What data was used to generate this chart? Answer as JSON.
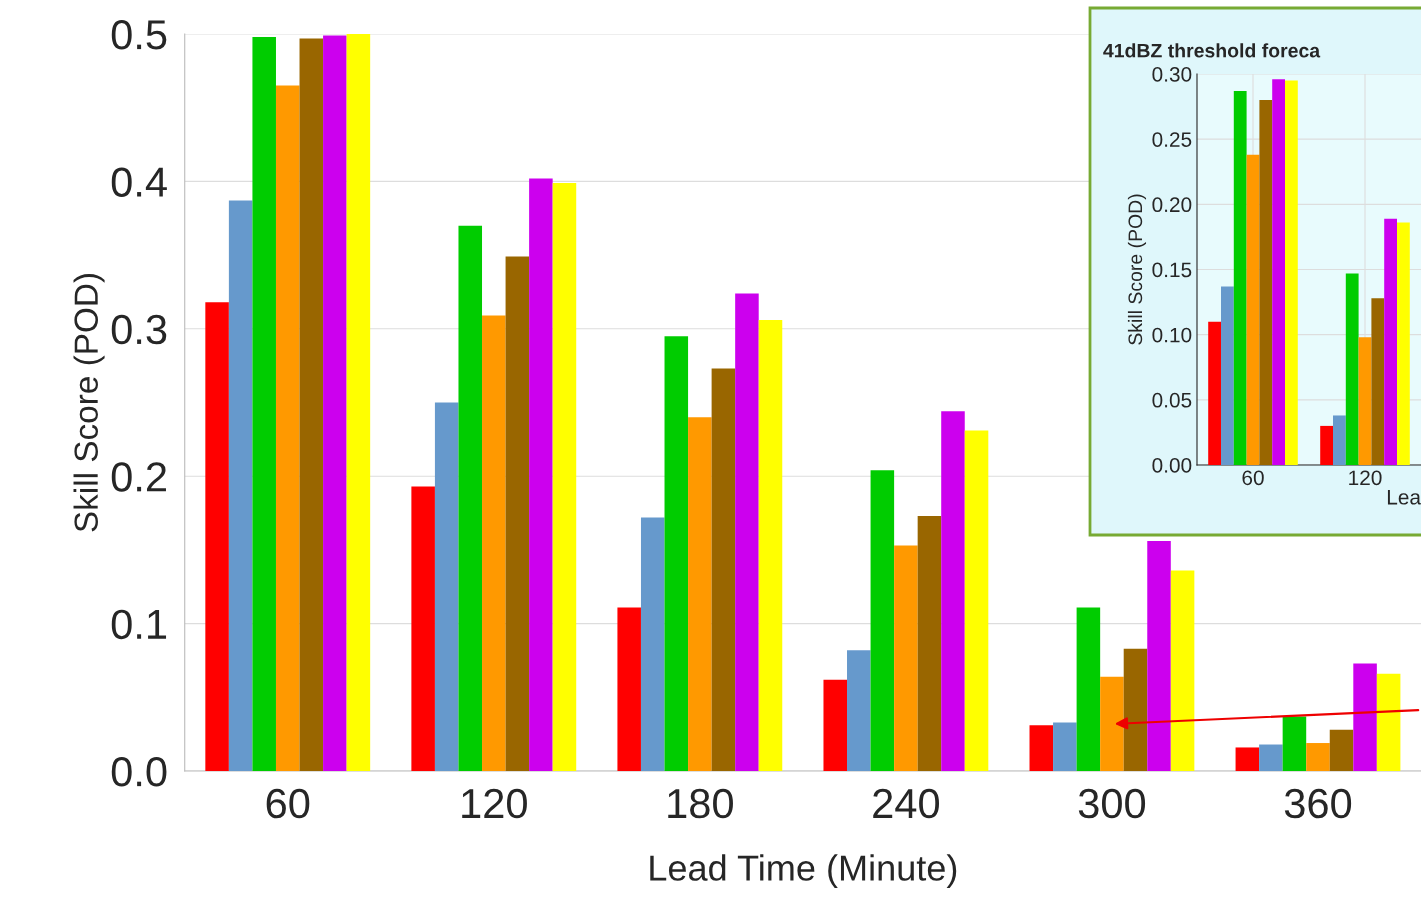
{
  "chart_data": [
    {
      "type": "bar",
      "xlabel": "Lead Time (Minute)",
      "ylabel": "Skill Score (POD)",
      "categories": [
        "60",
        "120",
        "180",
        "240",
        "300",
        "360"
      ],
      "ylim": [
        0,
        0.5
      ],
      "yticks": [
        {
          "value": 0,
          "label": "0.0"
        },
        {
          "value": 0.1,
          "label": "0.1"
        },
        {
          "value": 0.2,
          "label": "0.2"
        },
        {
          "value": 0.3,
          "label": "0.3"
        },
        {
          "value": 0.4,
          "label": "0.4"
        },
        {
          "value": 0.5,
          "label": "0.5"
        }
      ],
      "grid": "y",
      "series": [
        {
          "color": "#ff0000",
          "values": [
            0.318,
            0.193,
            0.111,
            0.062,
            0.031,
            0.016
          ]
        },
        {
          "color": "#6699cc",
          "values": [
            0.387,
            0.25,
            0.172,
            0.082,
            0.033,
            0.018
          ]
        },
        {
          "color": "#00cc00",
          "values": [
            0.498,
            0.37,
            0.295,
            0.204,
            0.111,
            0.037
          ]
        },
        {
          "color": "#ff9900",
          "values": [
            0.465,
            0.309,
            0.24,
            0.153,
            0.064,
            0.019
          ]
        },
        {
          "color": "#996600",
          "values": [
            0.497,
            0.349,
            0.273,
            0.173,
            0.083,
            0.028
          ]
        },
        {
          "color": "#cc00ee",
          "values": [
            0.499,
            0.402,
            0.324,
            0.244,
            0.156,
            0.073
          ]
        },
        {
          "color": "#ffff00",
          "values": [
            0.5,
            0.399,
            0.306,
            0.231,
            0.136,
            0.066
          ]
        }
      ]
    },
    {
      "type": "bar",
      "title": "41dBZ threshold foreca",
      "xlabel": "Lea",
      "ylabel": "Skill Score (POD)",
      "categories": [
        "60",
        "120"
      ],
      "ylim": [
        0,
        0.3
      ],
      "yticks": [
        {
          "value": 0,
          "label": "0.00"
        },
        {
          "value": 0.05,
          "label": "0.05"
        },
        {
          "value": 0.1,
          "label": "0.10"
        },
        {
          "value": 0.15,
          "label": "0.15"
        },
        {
          "value": 0.2,
          "label": "0.20"
        },
        {
          "value": 0.25,
          "label": "0.25"
        },
        {
          "value": 0.3,
          "label": "0.30"
        }
      ],
      "grid": true,
      "series": [
        {
          "color": "#ff0000",
          "values": [
            0.11,
            0.03
          ]
        },
        {
          "color": "#6699cc",
          "values": [
            0.137,
            0.038
          ]
        },
        {
          "color": "#00cc00",
          "values": [
            0.287,
            0.147
          ]
        },
        {
          "color": "#ff9900",
          "values": [
            0.238,
            0.098
          ]
        },
        {
          "color": "#996600",
          "values": [
            0.28,
            0.128
          ]
        },
        {
          "color": "#cc00ee",
          "values": [
            0.296,
            0.189
          ]
        },
        {
          "color": "#ffff00",
          "values": [
            0.295,
            0.186
          ]
        }
      ]
    }
  ]
}
